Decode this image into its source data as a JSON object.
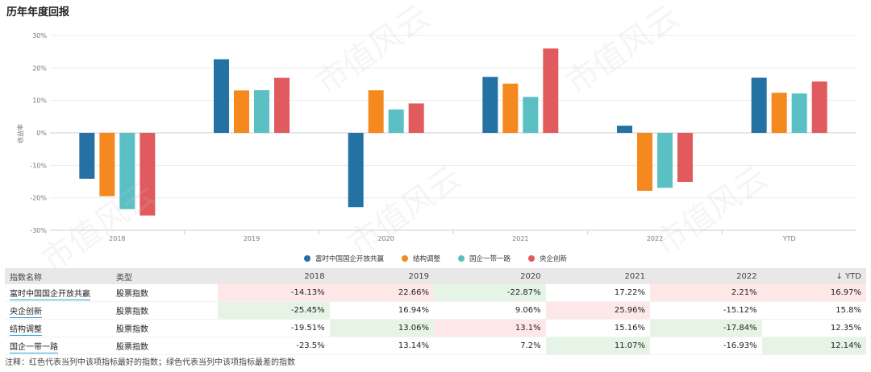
{
  "title": "历年年度回报",
  "watermark": "市值风云",
  "chart_data": {
    "type": "bar",
    "categories": [
      "2018",
      "2019",
      "2020",
      "2021",
      "2022",
      "YTD"
    ],
    "ylabel": "收益率",
    "ylim": [
      -30,
      30
    ],
    "yticks": [
      "30%",
      "20%",
      "10%",
      "0%",
      "-10%",
      "-20%",
      "-30%"
    ],
    "series": [
      {
        "name": "富时中国国企开放共赢",
        "color": "#2471a3",
        "values": [
          -14.13,
          22.66,
          -22.87,
          17.22,
          2.21,
          16.97
        ]
      },
      {
        "name": "结构调整",
        "color": "#f5891f",
        "values": [
          -19.51,
          13.06,
          13.1,
          15.16,
          -17.84,
          12.35
        ]
      },
      {
        "name": "国企一带一路",
        "color": "#5bc0c4",
        "values": [
          -23.5,
          13.14,
          7.2,
          11.07,
          -16.93,
          12.14
        ]
      },
      {
        "name": "央企创新",
        "color": "#e05a5e",
        "values": [
          -25.45,
          16.94,
          9.06,
          25.96,
          -15.12,
          15.8
        ]
      }
    ]
  },
  "table": {
    "headers": [
      "指数名称",
      "类型",
      "2018",
      "2019",
      "2020",
      "2021",
      "2022",
      "YTD"
    ],
    "sort_icon": "↓",
    "rows": [
      {
        "name": "富时中国国企开放共赢",
        "type": "股票指数",
        "values": [
          "-14.13%",
          "22.66%",
          "-22.87%",
          "17.22%",
          "2.21%",
          "16.97%"
        ],
        "marks": [
          "best",
          "best",
          "worst",
          "",
          "best",
          "best"
        ]
      },
      {
        "name": "央企创新",
        "type": "股票指数",
        "values": [
          "-25.45%",
          "16.94%",
          "9.06%",
          "25.96%",
          "-15.12%",
          "15.8%"
        ],
        "marks": [
          "worst",
          "",
          "",
          "best",
          "",
          ""
        ]
      },
      {
        "name": "结构调整",
        "type": "股票指数",
        "values": [
          "-19.51%",
          "13.06%",
          "13.1%",
          "15.16%",
          "-17.84%",
          "12.35%"
        ],
        "marks": [
          "",
          "worst",
          "best",
          "",
          "worst",
          ""
        ]
      },
      {
        "name": "国企一带一路",
        "type": "股票指数",
        "values": [
          "-23.5%",
          "13.14%",
          "7.2%",
          "11.07%",
          "-16.93%",
          "12.14%"
        ],
        "marks": [
          "",
          "",
          "",
          "worst",
          "",
          "worst"
        ]
      }
    ]
  },
  "note": "注释：红色代表当列中该项指标最好的指数；绿色代表当列中该项指标最差的指数"
}
